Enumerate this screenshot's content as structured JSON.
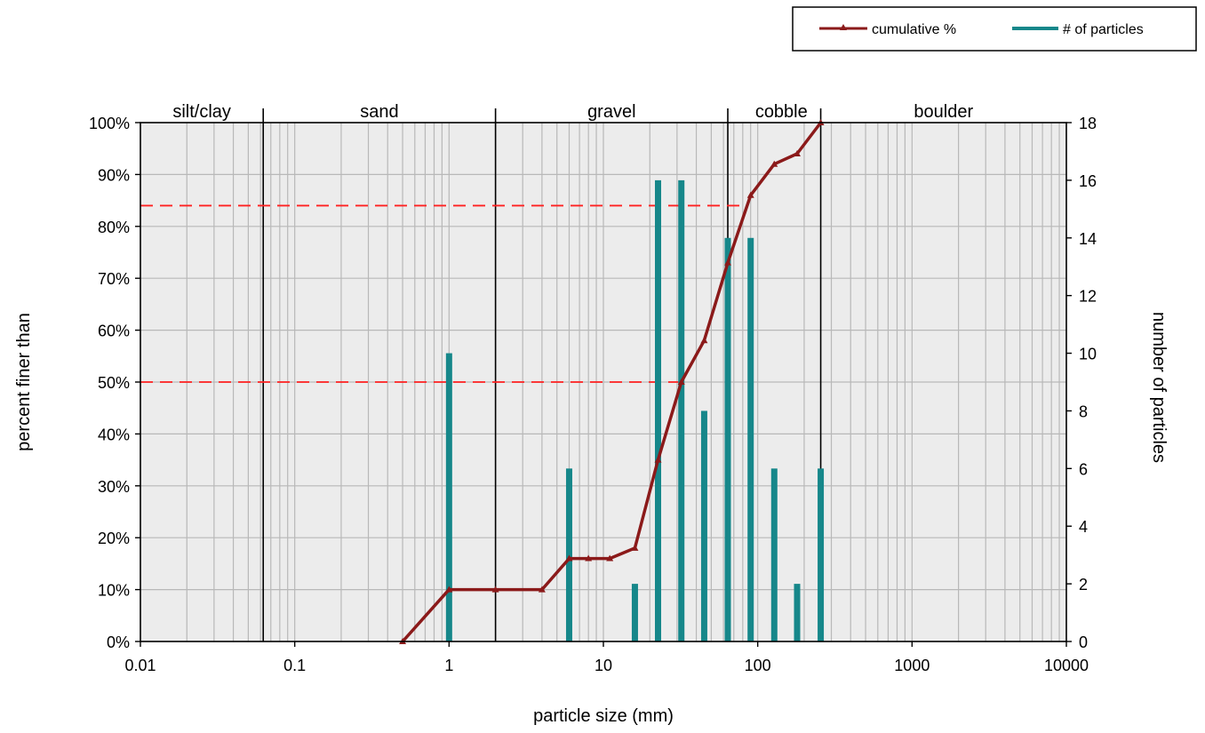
{
  "chart_data": {
    "type": "line",
    "xlabel": "particle size (mm)",
    "ylabel": "percent finer than",
    "y2label": "number of particles",
    "x_scale": "log",
    "xlim": [
      0.01,
      10000
    ],
    "ylim": [
      0,
      100
    ],
    "y2lim": [
      0,
      18
    ],
    "x_tick_labels": [
      "0.01",
      "0.1",
      "1",
      "10",
      "100",
      "1000",
      "10000"
    ],
    "y_tick_labels": [
      "0%",
      "10%",
      "20%",
      "30%",
      "40%",
      "50%",
      "60%",
      "70%",
      "80%",
      "90%",
      "100%"
    ],
    "y2_tick_labels": [
      "0",
      "2",
      "4",
      "6",
      "8",
      "10",
      "12",
      "14",
      "16",
      "18"
    ],
    "grid": true,
    "plot_background": "#ececec",
    "legend": {
      "placement": "top-right",
      "entries": [
        "cumulative %",
        "# of particles"
      ]
    },
    "size_classes": [
      {
        "label": "silt/clay",
        "from": 0.01,
        "to": 0.0625
      },
      {
        "label": "sand",
        "from": 0.0625,
        "to": 2
      },
      {
        "label": "gravel",
        "from": 2,
        "to": 64
      },
      {
        "label": "cobble",
        "from": 64,
        "to": 256
      },
      {
        "label": "boulder",
        "from": 256,
        "to": 10000
      }
    ],
    "boundaries": [
      0.0625,
      2,
      64,
      256
    ],
    "reference_lines": [
      {
        "percent": 50,
        "x_end": 32
      },
      {
        "percent": 84,
        "x_end": 80
      }
    ],
    "series": [
      {
        "name": "cumulative %",
        "type": "line",
        "axis": "left",
        "color": "#8b1a1a",
        "x": [
          0.5,
          1,
          2,
          4,
          6,
          8,
          11,
          16,
          22.6,
          32,
          45,
          64,
          90,
          128,
          180,
          256
        ],
        "y": [
          0,
          10,
          10,
          10,
          16,
          16,
          16,
          18,
          35,
          50,
          58,
          73,
          86,
          92,
          94,
          100
        ]
      },
      {
        "name": "# of particles",
        "type": "bar",
        "axis": "right",
        "color": "#16878a",
        "x": [
          1,
          6,
          16,
          22.6,
          32,
          45,
          64,
          90,
          128,
          180,
          256
        ],
        "values": [
          10,
          6,
          2,
          16,
          16,
          8,
          14,
          14,
          6,
          2,
          6
        ]
      }
    ]
  }
}
